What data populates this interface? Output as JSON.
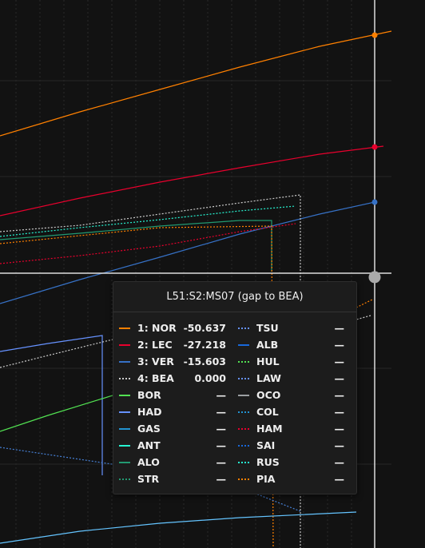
{
  "tooltip": {
    "title": "L51:S2:MS07 (gap to BEA)",
    "left": [
      {
        "name": "1: NOR",
        "value": "-50.637",
        "color": "#ff8000",
        "style": "solid"
      },
      {
        "name": "2: LEC",
        "value": "-27.218",
        "color": "#e8002d",
        "style": "solid"
      },
      {
        "name": "3: VER",
        "value": "-15.603",
        "color": "#3671c6",
        "style": "solid"
      },
      {
        "name": "4: BEA",
        "value": "0.000",
        "color": "#cccccc",
        "style": "dotted"
      },
      {
        "name": "BOR",
        "value": "—",
        "color": "#52e252",
        "style": "solid"
      },
      {
        "name": "HAD",
        "value": "—",
        "color": "#6692ff",
        "style": "solid"
      },
      {
        "name": "GAS",
        "value": "—",
        "color": "#2293d1",
        "style": "solid"
      },
      {
        "name": "ANT",
        "value": "—",
        "color": "#27f4d2",
        "style": "solid"
      },
      {
        "name": "ALO",
        "value": "—",
        "color": "#229971",
        "style": "solid"
      },
      {
        "name": "STR",
        "value": "—",
        "color": "#229971",
        "style": "dotted"
      }
    ],
    "right": [
      {
        "name": "TSU",
        "value": "—",
        "color": "#6692ff",
        "style": "dotted"
      },
      {
        "name": "ALB",
        "value": "—",
        "color": "#1868db",
        "style": "solid"
      },
      {
        "name": "HUL",
        "value": "—",
        "color": "#52e252",
        "style": "dotted"
      },
      {
        "name": "LAW",
        "value": "—",
        "color": "#6692ff",
        "style": "dotted"
      },
      {
        "name": "OCO",
        "value": "—",
        "color": "#9c9fa2",
        "style": "solid"
      },
      {
        "name": "COL",
        "value": "—",
        "color": "#2293d1",
        "style": "dotted"
      },
      {
        "name": "HAM",
        "value": "—",
        "color": "#e8002d",
        "style": "dotted"
      },
      {
        "name": "SAI",
        "value": "—",
        "color": "#1868db",
        "style": "dotted"
      },
      {
        "name": "RUS",
        "value": "—",
        "color": "#27f4d2",
        "style": "dotted"
      },
      {
        "name": "PIA",
        "value": "—",
        "color": "#ff8000",
        "style": "dotted"
      }
    ]
  }
}
